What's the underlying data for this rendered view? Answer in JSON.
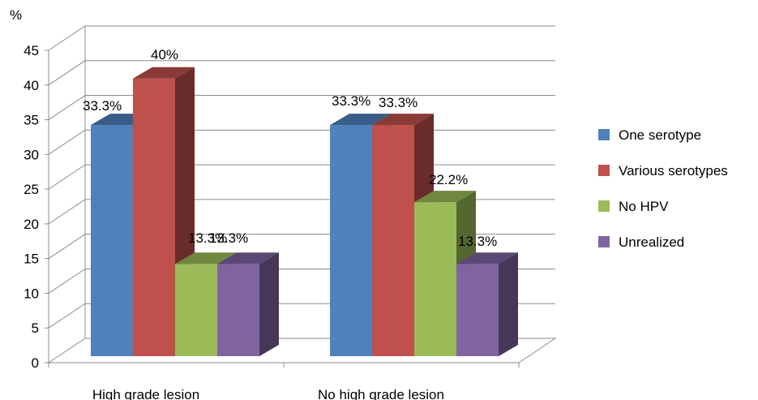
{
  "chart_data": {
    "type": "bar",
    "ylabel": "%",
    "ylim": [
      0,
      45
    ],
    "yticks": [
      0,
      5,
      10,
      15,
      20,
      25,
      30,
      35,
      40,
      45
    ],
    "grid": true,
    "legend_position": "right",
    "categories": [
      "High grade lesion",
      "No high grade lesion"
    ],
    "series": [
      {
        "name": "One serotype",
        "color": "#4f81bd",
        "values": [
          33.3,
          33.3
        ],
        "labels": [
          "33.3%",
          "33.3%"
        ]
      },
      {
        "name": "Various serotypes",
        "color": "#c0504d",
        "values": [
          40,
          33.3
        ],
        "labels": [
          "40%",
          "33.3%"
        ]
      },
      {
        "name": "No HPV",
        "color": "#9bbb59",
        "values": [
          13.3,
          22.2
        ],
        "labels": [
          "13.3%",
          "22.2%"
        ]
      },
      {
        "name": "Unrealized",
        "color": "#8064a2",
        "values": [
          13.3,
          13.3
        ],
        "labels": [
          "13.3%",
          "13.3%"
        ]
      }
    ]
  }
}
